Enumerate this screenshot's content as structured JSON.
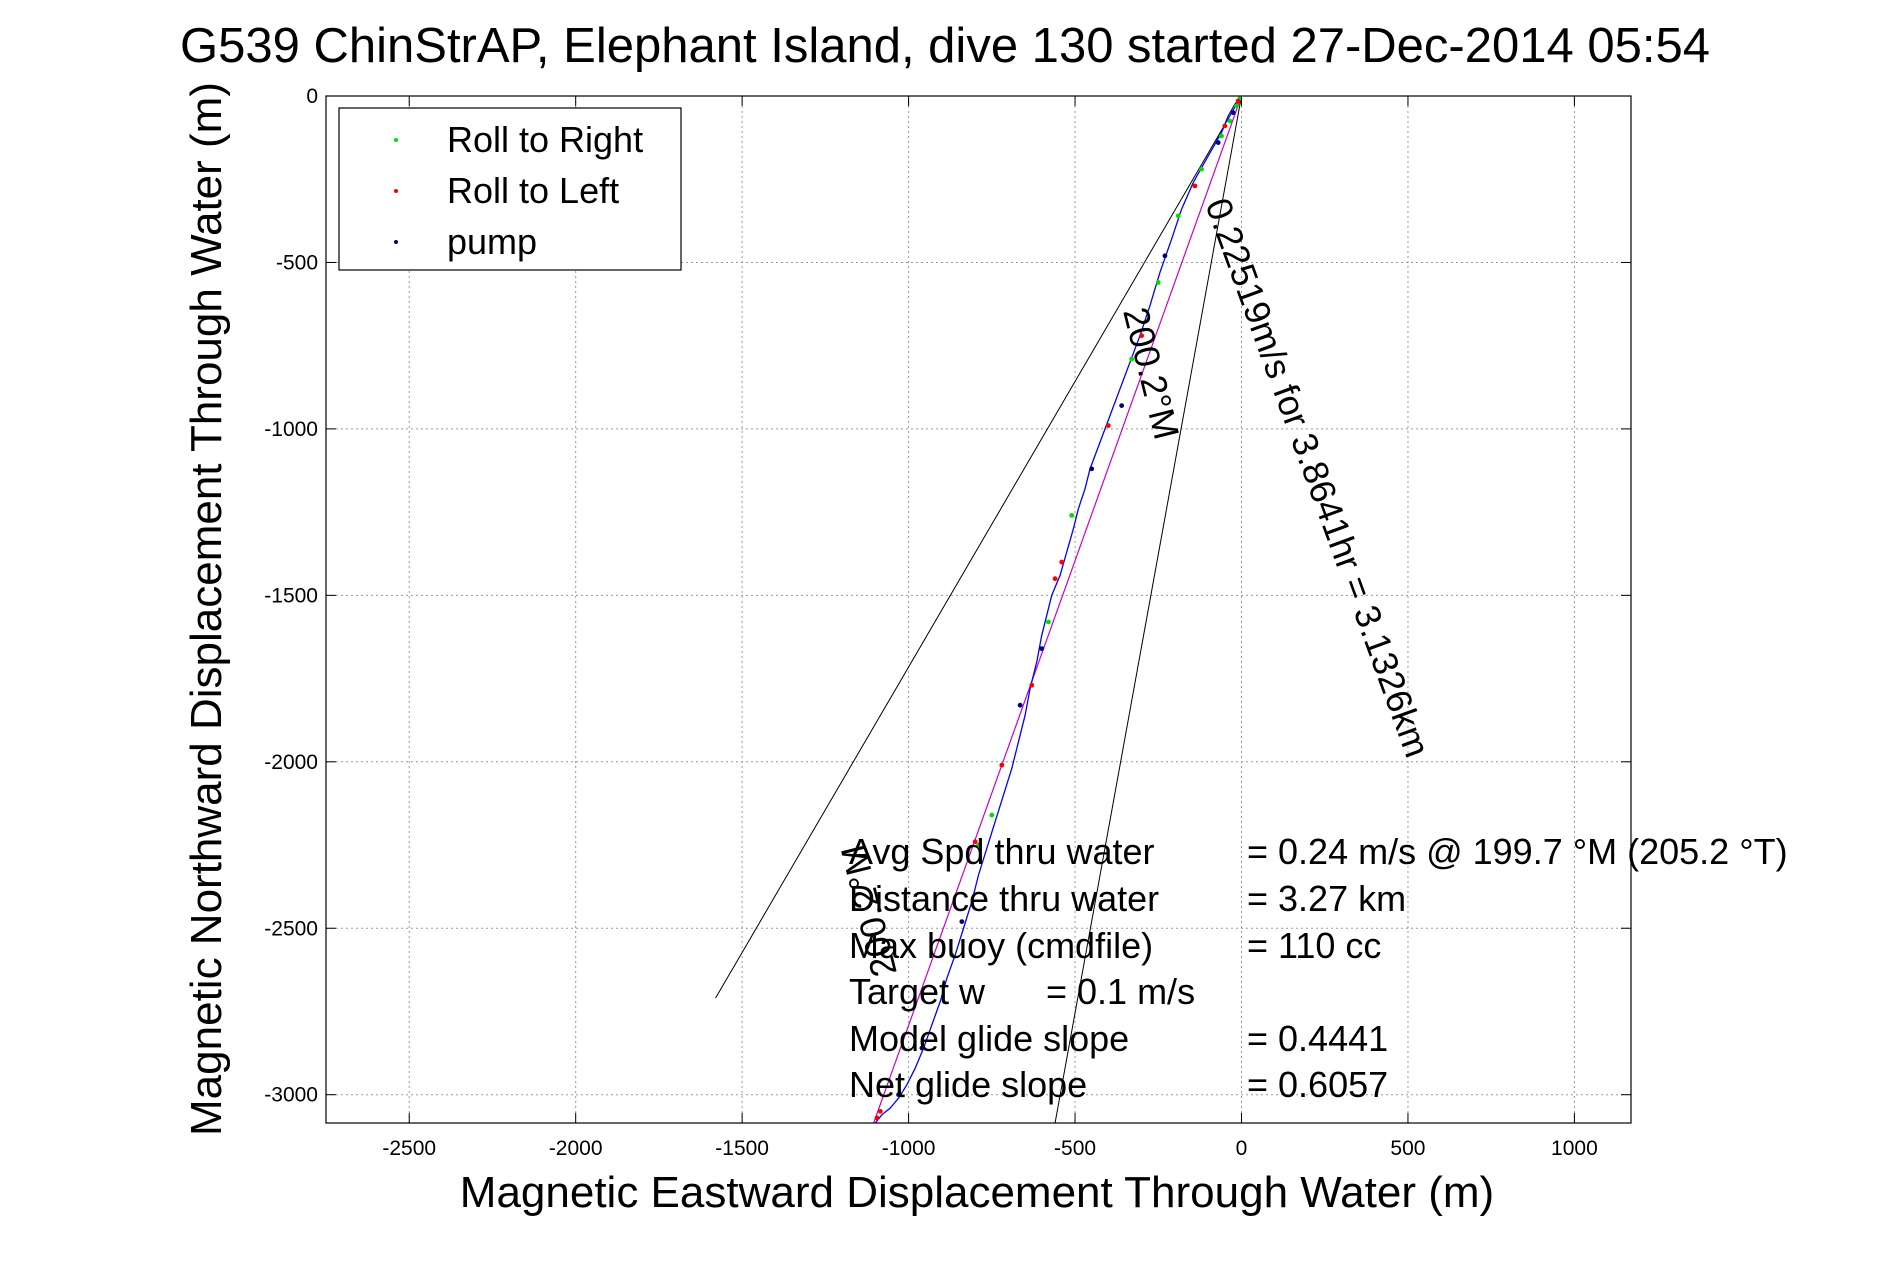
{
  "chart_data": {
    "type": "line",
    "title": "G539 ChinStrAP, Elephant Island, dive 130 started 27-Dec-2014 05:54",
    "xlabel": "Magnetic Eastward Displacement Through Water (m)",
    "ylabel": "Magnetic Northward Displacement Through Water (m)",
    "xlim": [
      -2750,
      1170
    ],
    "ylim": [
      -3085,
      0
    ],
    "xticks": [
      -2500,
      -2000,
      -1500,
      -1000,
      -500,
      0,
      500,
      1000
    ],
    "yticks": [
      0,
      -500,
      -1000,
      -1500,
      -2000,
      -2500,
      -3000
    ],
    "grid": true,
    "legend": {
      "placement": "top-left",
      "entries": [
        {
          "label": "Roll to Right",
          "color": "#00dd00"
        },
        {
          "label": "Roll to Left",
          "color": "#ff0000"
        },
        {
          "label": "pump",
          "color": "#000080"
        }
      ]
    },
    "track": {
      "color": "#0000ff",
      "x": [
        0,
        -20,
        -40,
        -60,
        -100,
        -145,
        -180,
        -210,
        -245,
        -275,
        -305,
        -335,
        -365,
        -395,
        -425,
        -455,
        -470,
        -490,
        -505,
        -525,
        -545,
        -570,
        -585,
        -600,
        -615,
        -635,
        -650,
        -670,
        -690,
        -715,
        -740,
        -765,
        -790,
        -810,
        -835,
        -860,
        -885,
        -905,
        -930,
        -955,
        -980,
        -1005,
        -1030,
        -1055,
        -1080,
        -1100
      ],
      "y": [
        0,
        -25,
        -60,
        -110,
        -180,
        -260,
        -340,
        -430,
        -530,
        -630,
        -720,
        -800,
        -880,
        -960,
        -1040,
        -1120,
        -1180,
        -1240,
        -1300,
        -1370,
        -1440,
        -1500,
        -1560,
        -1620,
        -1700,
        -1780,
        -1860,
        -1940,
        -2020,
        -2100,
        -2180,
        -2260,
        -2340,
        -2420,
        -2500,
        -2580,
        -2650,
        -2720,
        -2790,
        -2860,
        -2920,
        -2970,
        -3010,
        -3040,
        -3060,
        -3085
      ]
    },
    "rolls_right": {
      "x": [
        -5,
        -15,
        -35,
        -60,
        -120,
        -190,
        -250,
        -330,
        -510,
        -580,
        -750,
        -790,
        -870
      ],
      "y": [
        -8,
        -30,
        -75,
        -120,
        -220,
        -360,
        -560,
        -790,
        -1260,
        -1580,
        -2160,
        -2250,
        -2580
      ]
    },
    "rolls_left": {
      "x": [
        -10,
        -50,
        -140,
        -300,
        -400,
        -540,
        -560,
        -630,
        -720,
        -800,
        -1085,
        -1095
      ],
      "y": [
        -15,
        -90,
        -270,
        -720,
        -990,
        -1400,
        -1450,
        -1770,
        -2010,
        -2240,
        -3050,
        -3070
      ]
    },
    "pumps": {
      "x": [
        -25,
        -70,
        -230,
        -360,
        -450,
        -600,
        -665,
        -840,
        -960,
        -1030
      ],
      "y": [
        -50,
        -140,
        -480,
        -930,
        -1120,
        -1660,
        -1830,
        -2480,
        -2860,
        -3000
      ]
    },
    "course_line": {
      "color": "#cc00cc",
      "x": [
        0,
        -1105
      ],
      "y": [
        0,
        -3085
      ]
    },
    "cone_lines": [
      {
        "x": [
          0,
          -1580
        ],
        "y": [
          0,
          -2710
        ]
      },
      {
        "x": [
          0,
          -560
        ],
        "y": [
          0,
          -3085
        ]
      }
    ],
    "annotations": {
      "heading_top": "200.2°M",
      "speed_line": "0.22519m/s for 3.8641hr = 3.1326km",
      "heading_bottom": "200.2°M"
    },
    "stats": [
      {
        "label": "Avg Spd thru water",
        "value": "=  0.24 m/s @ 199.7 °M (205.2 °T)"
      },
      {
        "label": "Distance thru water",
        "value": "=  3.27 km"
      },
      {
        "label": "Max buoy (cmdfile)",
        "value": "= 110 cc"
      },
      {
        "label": "Target w",
        "value": "= 0.1 m/s"
      },
      {
        "label": "Model glide slope",
        "value": "= 0.4441"
      },
      {
        "label": "Net glide slope",
        "value": "= 0.6057"
      }
    ]
  }
}
